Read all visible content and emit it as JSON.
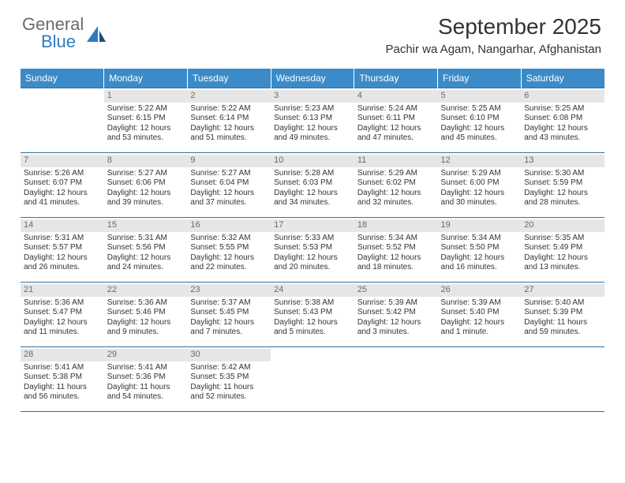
{
  "logo": {
    "general": "General",
    "blue": "Blue"
  },
  "title": "September 2025",
  "location": "Pachir wa Agam, Nangarhar, Afghanistan",
  "colors": {
    "header_bg": "#3b8bc8",
    "header_text": "#ffffff",
    "border": "#2f6fa3",
    "daynum_bg": "#e6e6e6",
    "daynum_text": "#6a6a6a",
    "logo_gray": "#6a6a6a",
    "logo_blue": "#2f7bbf"
  },
  "day_names": [
    "Sunday",
    "Monday",
    "Tuesday",
    "Wednesday",
    "Thursday",
    "Friday",
    "Saturday"
  ],
  "weeks": [
    [
      {
        "n": "",
        "sr": "",
        "ss": "",
        "d1": "",
        "d2": ""
      },
      {
        "n": "1",
        "sr": "Sunrise: 5:22 AM",
        "ss": "Sunset: 6:15 PM",
        "d1": "Daylight: 12 hours",
        "d2": "and 53 minutes."
      },
      {
        "n": "2",
        "sr": "Sunrise: 5:22 AM",
        "ss": "Sunset: 6:14 PM",
        "d1": "Daylight: 12 hours",
        "d2": "and 51 minutes."
      },
      {
        "n": "3",
        "sr": "Sunrise: 5:23 AM",
        "ss": "Sunset: 6:13 PM",
        "d1": "Daylight: 12 hours",
        "d2": "and 49 minutes."
      },
      {
        "n": "4",
        "sr": "Sunrise: 5:24 AM",
        "ss": "Sunset: 6:11 PM",
        "d1": "Daylight: 12 hours",
        "d2": "and 47 minutes."
      },
      {
        "n": "5",
        "sr": "Sunrise: 5:25 AM",
        "ss": "Sunset: 6:10 PM",
        "d1": "Daylight: 12 hours",
        "d2": "and 45 minutes."
      },
      {
        "n": "6",
        "sr": "Sunrise: 5:25 AM",
        "ss": "Sunset: 6:08 PM",
        "d1": "Daylight: 12 hours",
        "d2": "and 43 minutes."
      }
    ],
    [
      {
        "n": "7",
        "sr": "Sunrise: 5:26 AM",
        "ss": "Sunset: 6:07 PM",
        "d1": "Daylight: 12 hours",
        "d2": "and 41 minutes."
      },
      {
        "n": "8",
        "sr": "Sunrise: 5:27 AM",
        "ss": "Sunset: 6:06 PM",
        "d1": "Daylight: 12 hours",
        "d2": "and 39 minutes."
      },
      {
        "n": "9",
        "sr": "Sunrise: 5:27 AM",
        "ss": "Sunset: 6:04 PM",
        "d1": "Daylight: 12 hours",
        "d2": "and 37 minutes."
      },
      {
        "n": "10",
        "sr": "Sunrise: 5:28 AM",
        "ss": "Sunset: 6:03 PM",
        "d1": "Daylight: 12 hours",
        "d2": "and 34 minutes."
      },
      {
        "n": "11",
        "sr": "Sunrise: 5:29 AM",
        "ss": "Sunset: 6:02 PM",
        "d1": "Daylight: 12 hours",
        "d2": "and 32 minutes."
      },
      {
        "n": "12",
        "sr": "Sunrise: 5:29 AM",
        "ss": "Sunset: 6:00 PM",
        "d1": "Daylight: 12 hours",
        "d2": "and 30 minutes."
      },
      {
        "n": "13",
        "sr": "Sunrise: 5:30 AM",
        "ss": "Sunset: 5:59 PM",
        "d1": "Daylight: 12 hours",
        "d2": "and 28 minutes."
      }
    ],
    [
      {
        "n": "14",
        "sr": "Sunrise: 5:31 AM",
        "ss": "Sunset: 5:57 PM",
        "d1": "Daylight: 12 hours",
        "d2": "and 26 minutes."
      },
      {
        "n": "15",
        "sr": "Sunrise: 5:31 AM",
        "ss": "Sunset: 5:56 PM",
        "d1": "Daylight: 12 hours",
        "d2": "and 24 minutes."
      },
      {
        "n": "16",
        "sr": "Sunrise: 5:32 AM",
        "ss": "Sunset: 5:55 PM",
        "d1": "Daylight: 12 hours",
        "d2": "and 22 minutes."
      },
      {
        "n": "17",
        "sr": "Sunrise: 5:33 AM",
        "ss": "Sunset: 5:53 PM",
        "d1": "Daylight: 12 hours",
        "d2": "and 20 minutes."
      },
      {
        "n": "18",
        "sr": "Sunrise: 5:34 AM",
        "ss": "Sunset: 5:52 PM",
        "d1": "Daylight: 12 hours",
        "d2": "and 18 minutes."
      },
      {
        "n": "19",
        "sr": "Sunrise: 5:34 AM",
        "ss": "Sunset: 5:50 PM",
        "d1": "Daylight: 12 hours",
        "d2": "and 16 minutes."
      },
      {
        "n": "20",
        "sr": "Sunrise: 5:35 AM",
        "ss": "Sunset: 5:49 PM",
        "d1": "Daylight: 12 hours",
        "d2": "and 13 minutes."
      }
    ],
    [
      {
        "n": "21",
        "sr": "Sunrise: 5:36 AM",
        "ss": "Sunset: 5:47 PM",
        "d1": "Daylight: 12 hours",
        "d2": "and 11 minutes."
      },
      {
        "n": "22",
        "sr": "Sunrise: 5:36 AM",
        "ss": "Sunset: 5:46 PM",
        "d1": "Daylight: 12 hours",
        "d2": "and 9 minutes."
      },
      {
        "n": "23",
        "sr": "Sunrise: 5:37 AM",
        "ss": "Sunset: 5:45 PM",
        "d1": "Daylight: 12 hours",
        "d2": "and 7 minutes."
      },
      {
        "n": "24",
        "sr": "Sunrise: 5:38 AM",
        "ss": "Sunset: 5:43 PM",
        "d1": "Daylight: 12 hours",
        "d2": "and 5 minutes."
      },
      {
        "n": "25",
        "sr": "Sunrise: 5:39 AM",
        "ss": "Sunset: 5:42 PM",
        "d1": "Daylight: 12 hours",
        "d2": "and 3 minutes."
      },
      {
        "n": "26",
        "sr": "Sunrise: 5:39 AM",
        "ss": "Sunset: 5:40 PM",
        "d1": "Daylight: 12 hours",
        "d2": "and 1 minute."
      },
      {
        "n": "27",
        "sr": "Sunrise: 5:40 AM",
        "ss": "Sunset: 5:39 PM",
        "d1": "Daylight: 11 hours",
        "d2": "and 59 minutes."
      }
    ],
    [
      {
        "n": "28",
        "sr": "Sunrise: 5:41 AM",
        "ss": "Sunset: 5:38 PM",
        "d1": "Daylight: 11 hours",
        "d2": "and 56 minutes."
      },
      {
        "n": "29",
        "sr": "Sunrise: 5:41 AM",
        "ss": "Sunset: 5:36 PM",
        "d1": "Daylight: 11 hours",
        "d2": "and 54 minutes."
      },
      {
        "n": "30",
        "sr": "Sunrise: 5:42 AM",
        "ss": "Sunset: 5:35 PM",
        "d1": "Daylight: 11 hours",
        "d2": "and 52 minutes."
      },
      {
        "n": "",
        "sr": "",
        "ss": "",
        "d1": "",
        "d2": ""
      },
      {
        "n": "",
        "sr": "",
        "ss": "",
        "d1": "",
        "d2": ""
      },
      {
        "n": "",
        "sr": "",
        "ss": "",
        "d1": "",
        "d2": ""
      },
      {
        "n": "",
        "sr": "",
        "ss": "",
        "d1": "",
        "d2": ""
      }
    ]
  ]
}
